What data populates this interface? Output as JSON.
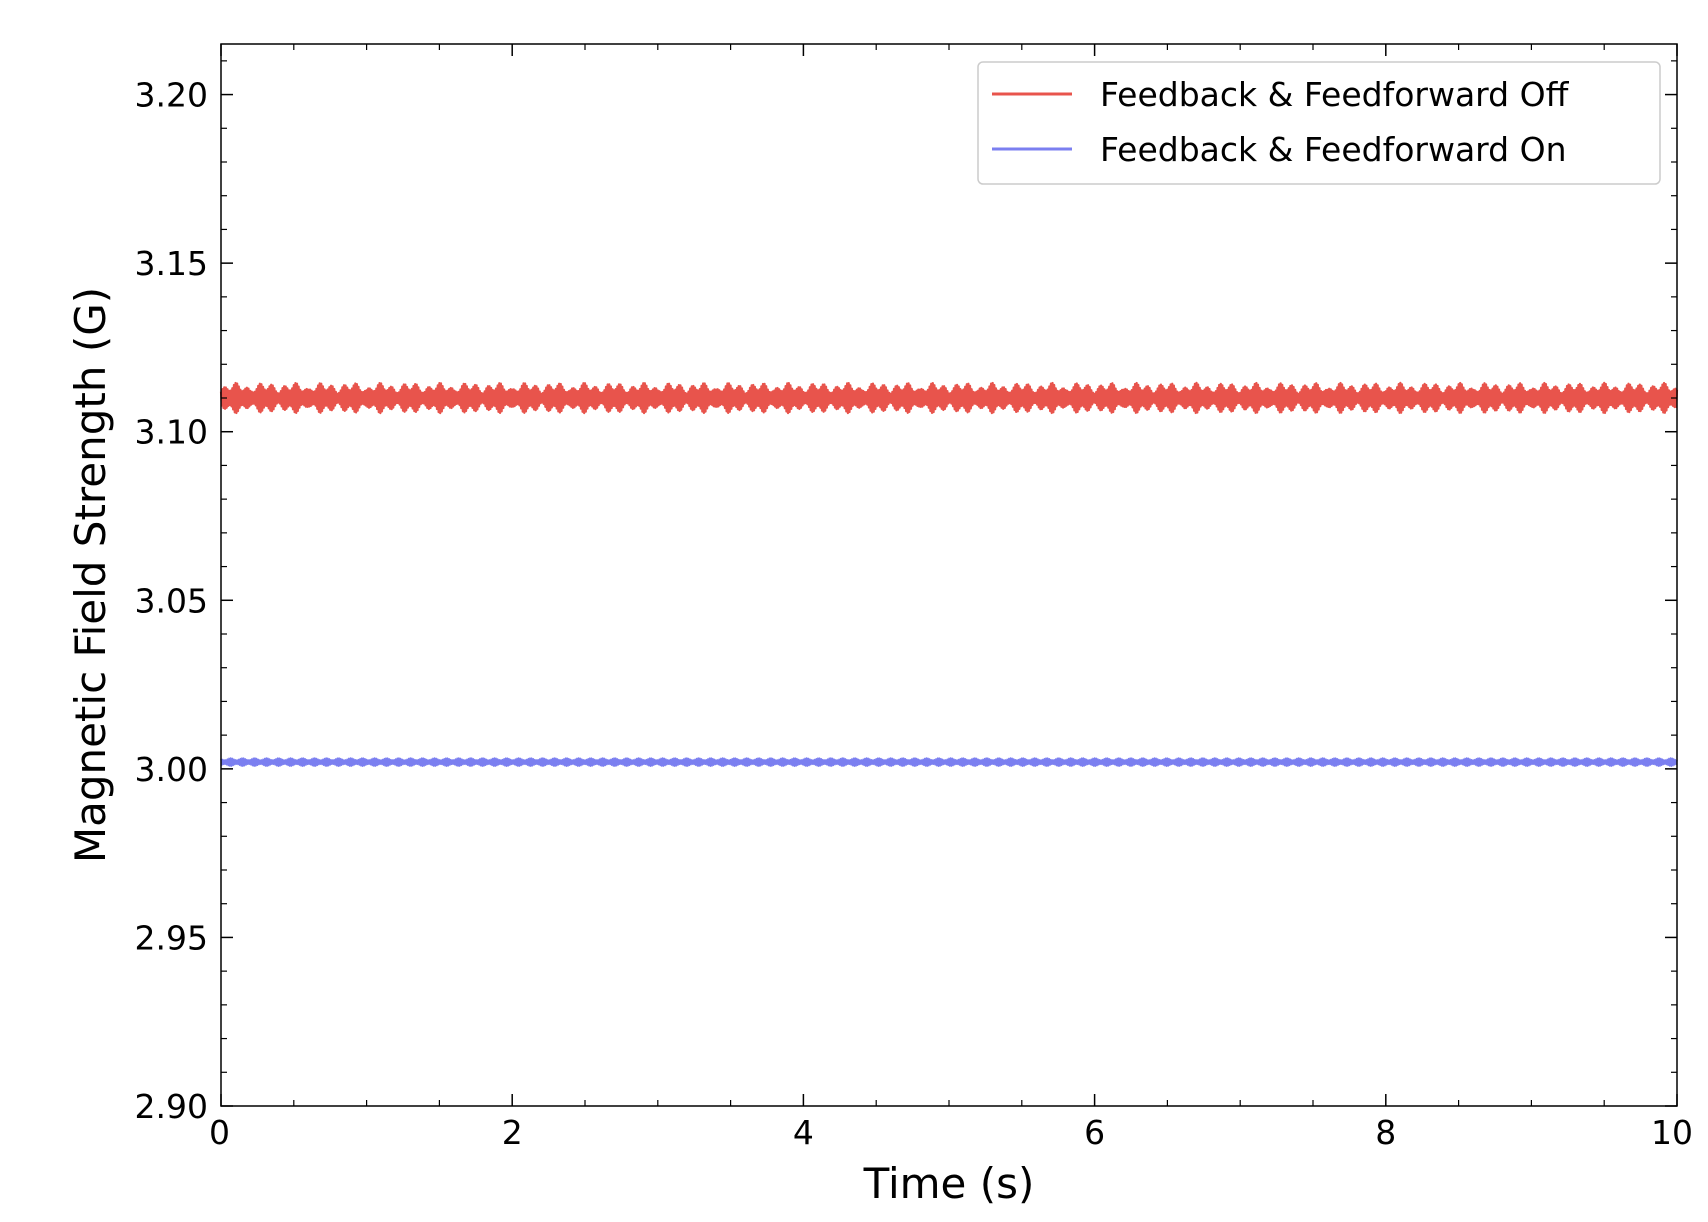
{
  "chart_data": {
    "type": "line",
    "xlabel": "Time (s)",
    "ylabel": "Magnetic Field Strength (G)",
    "xlim": [
      0,
      10
    ],
    "ylim": [
      2.9,
      3.215
    ],
    "xticks": [
      0,
      2,
      4,
      6,
      8,
      10
    ],
    "xtick_labels": [
      "0",
      "2",
      "4",
      "6",
      "8",
      "10"
    ],
    "yticks": [
      2.9,
      2.95,
      3.0,
      3.05,
      3.1,
      3.15,
      3.2
    ],
    "ytick_labels": [
      "2.90",
      "2.95",
      "3.00",
      "3.05",
      "3.10",
      "3.15",
      "3.20"
    ],
    "grid": false,
    "legend_position": "top-right",
    "series": [
      {
        "name": "Feedback & Feedforward Off",
        "color": "#e8544c",
        "mean": 3.11,
        "ripple_amplitude": 0.0045,
        "envelope_cycles": 50
      },
      {
        "name": "Feedback & Feedforward On",
        "color": "#7b7ff0",
        "mean": 3.002,
        "ripple_amplitude": 0.0012
      }
    ]
  }
}
